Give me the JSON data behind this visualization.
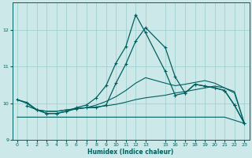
{
  "xlabel": "Humidex (Indice chaleur)",
  "bg_color": "#cce8e8",
  "grid_color": "#99cccc",
  "line_color": "#006060",
  "xlim": [
    -0.5,
    23.5
  ],
  "ylim": [
    9.0,
    12.75
  ],
  "yticks": [
    9,
    10,
    11,
    12
  ],
  "xticks": [
    0,
    1,
    2,
    3,
    4,
    5,
    6,
    7,
    8,
    9,
    10,
    11,
    12,
    13,
    15,
    16,
    17,
    18,
    19,
    20,
    21,
    22,
    23
  ],
  "line1_x": [
    0,
    2,
    3,
    4,
    9,
    13,
    21,
    23
  ],
  "line1_y": [
    9.62,
    9.62,
    9.62,
    9.62,
    9.62,
    9.62,
    9.62,
    9.45
  ],
  "line2_x": [
    0,
    1,
    2,
    3,
    4,
    5,
    6,
    7,
    8,
    9,
    10,
    11,
    12,
    13,
    15,
    16,
    17,
    18,
    19,
    20,
    21,
    22,
    23
  ],
  "line2_y": [
    10.1,
    10.0,
    9.82,
    9.78,
    9.78,
    9.82,
    9.85,
    9.88,
    9.9,
    9.93,
    9.97,
    10.03,
    10.1,
    10.15,
    10.22,
    10.28,
    10.32,
    10.37,
    10.42,
    10.47,
    10.42,
    10.32,
    9.45
  ],
  "line3_x": [
    0,
    1,
    2,
    3,
    4,
    5,
    6,
    7,
    8,
    9,
    10,
    11,
    12,
    13,
    15,
    16,
    17,
    18,
    19,
    20,
    21,
    22,
    23
  ],
  "line3_y": [
    10.1,
    10.0,
    9.82,
    9.78,
    9.78,
    9.82,
    9.85,
    9.88,
    9.95,
    10.05,
    10.18,
    10.35,
    10.55,
    10.7,
    10.55,
    10.48,
    10.52,
    10.57,
    10.62,
    10.55,
    10.42,
    10.28,
    9.45
  ],
  "line4_x": [
    1,
    2,
    3,
    4,
    5,
    6,
    7,
    8,
    9,
    10,
    11,
    12,
    13,
    15,
    16,
    17,
    18,
    19,
    20,
    21,
    22,
    23
  ],
  "line4_y": [
    9.93,
    9.82,
    9.72,
    9.72,
    9.78,
    9.85,
    9.88,
    9.88,
    9.95,
    10.55,
    11.07,
    11.7,
    12.07,
    11.52,
    10.72,
    10.28,
    10.52,
    10.47,
    10.42,
    10.35,
    9.95,
    9.45
  ],
  "line5_x": [
    0,
    1,
    2,
    3,
    4,
    5,
    6,
    7,
    8,
    9,
    10,
    11,
    12,
    13,
    15,
    16,
    17,
    18,
    19,
    20,
    21,
    22,
    23
  ],
  "line5_y": [
    10.1,
    10.02,
    9.82,
    9.72,
    9.72,
    9.78,
    9.88,
    9.95,
    10.15,
    10.48,
    11.1,
    11.55,
    12.42,
    11.93,
    10.87,
    10.22,
    10.28,
    10.52,
    10.47,
    10.42,
    10.35,
    9.95,
    9.45
  ]
}
